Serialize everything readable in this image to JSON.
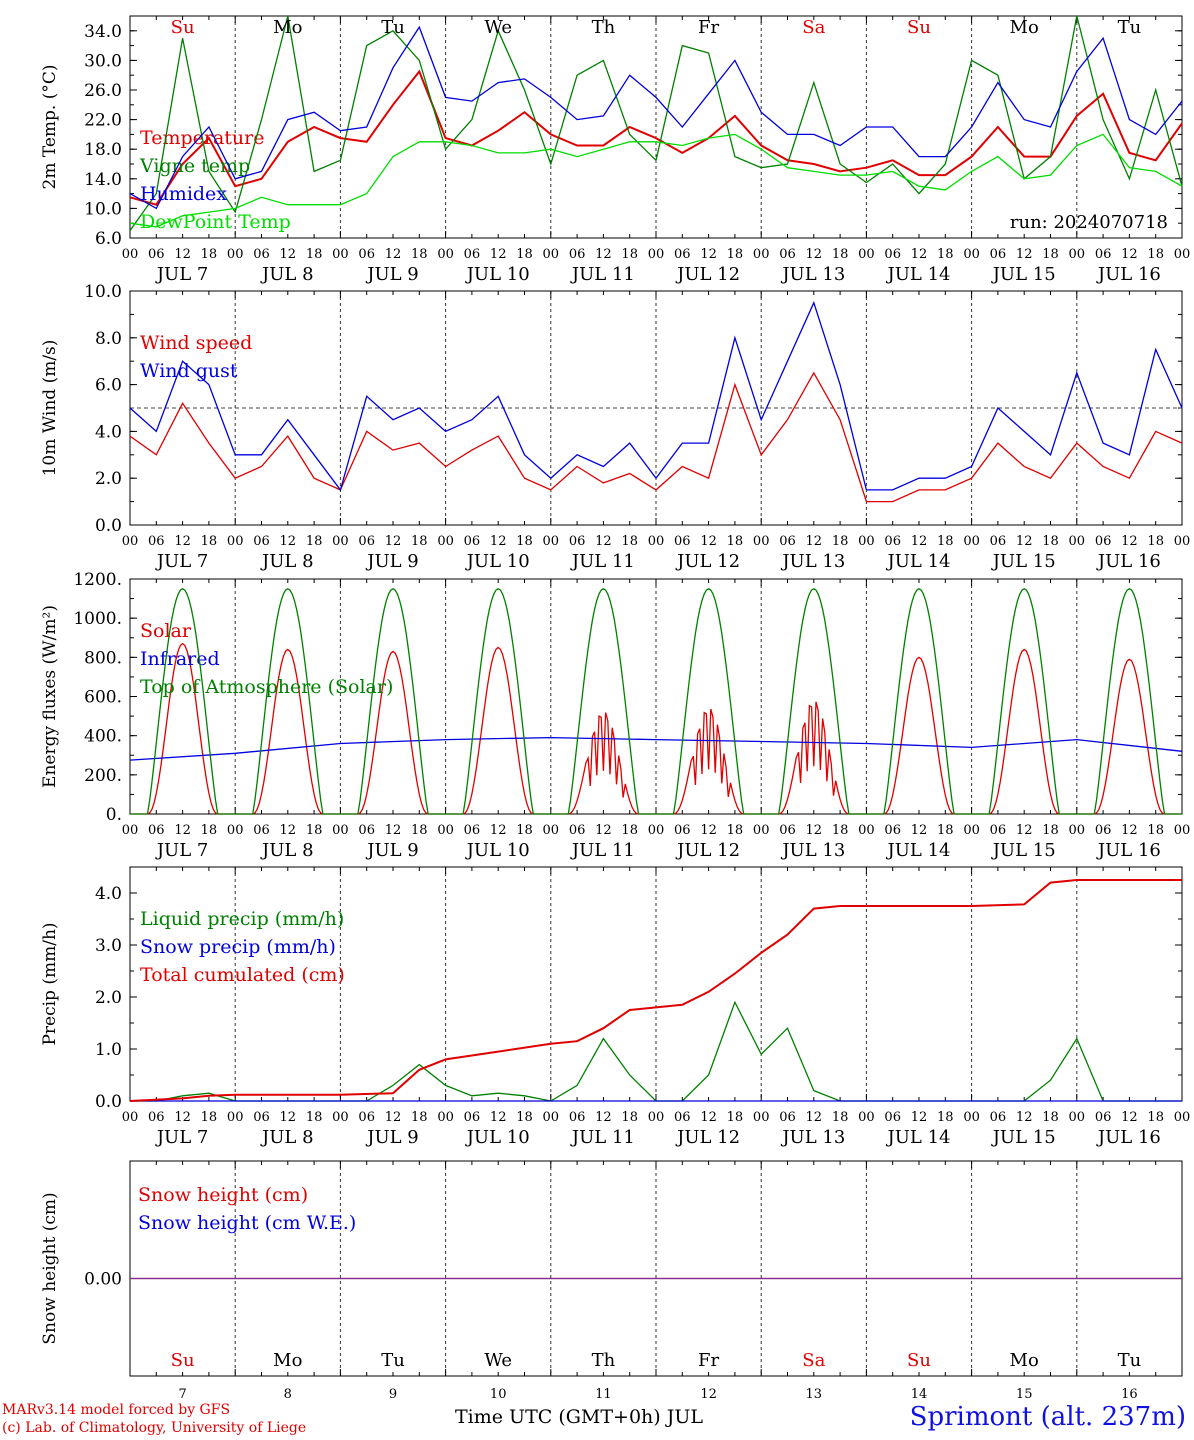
{
  "chart_data": [
    {
      "type": "line",
      "ylabel": "2m Temp. (°C)",
      "ylim": [
        6,
        36
      ],
      "yticks": [
        "6.0",
        "10.0",
        "14.0",
        "18.0",
        "22.0",
        "26.0",
        "30.0",
        "34.0"
      ],
      "ytick_values": [
        6,
        10,
        14,
        18,
        22,
        26,
        30,
        34
      ],
      "day_names": [
        "Su",
        "Mo",
        "Tu",
        "We",
        "Th",
        "Fr",
        "Sa",
        "Su",
        "Mo",
        "Tu"
      ],
      "run_label": "run: 2024070718",
      "series": [
        {
          "name": "Temperature",
          "color": "#e00000",
          "x": [
            0,
            6,
            12,
            18,
            24,
            30,
            36,
            42,
            48,
            54,
            60,
            66,
            72,
            78,
            84,
            90,
            96,
            102,
            108,
            114,
            120,
            126,
            132,
            138,
            144,
            150,
            156,
            162,
            168,
            174,
            180,
            186,
            192,
            198,
            204,
            210,
            216,
            222,
            228,
            234,
            240
          ],
          "y": [
            11.5,
            10.5,
            16.0,
            19.5,
            13.0,
            14.0,
            19.0,
            21.0,
            19.5,
            19.0,
            24.0,
            28.5,
            19.5,
            18.5,
            20.5,
            23.0,
            20.0,
            18.5,
            18.5,
            21.0,
            19.5,
            17.5,
            19.5,
            22.5,
            18.5,
            16.5,
            16.0,
            15.0,
            15.5,
            16.5,
            14.5,
            14.5,
            17.0,
            21.0,
            17.0,
            17.0,
            22.5,
            25.5,
            17.5,
            16.5,
            21.5
          ]
        },
        {
          "name": "Vigne temp",
          "color": "#008000",
          "x": [
            0,
            6,
            12,
            18,
            24,
            30,
            36,
            42,
            48,
            54,
            60,
            66,
            72,
            78,
            84,
            90,
            96,
            102,
            108,
            114,
            120,
            126,
            132,
            138,
            144,
            150,
            156,
            162,
            168,
            174,
            180,
            186,
            192,
            198,
            204,
            210,
            216,
            222,
            228,
            234,
            240
          ],
          "y": [
            7.0,
            12.0,
            33.0,
            15.0,
            9.5,
            22.0,
            36.0,
            15.0,
            16.5,
            32.0,
            34.0,
            30.0,
            18.0,
            22.0,
            34.0,
            26.0,
            16.0,
            28.0,
            30.0,
            20.0,
            16.5,
            32.0,
            31.0,
            17.0,
            15.5,
            16.0,
            27.0,
            16.0,
            13.5,
            16.0,
            12.0,
            16.0,
            30.0,
            28.0,
            14.0,
            17.0,
            36.0,
            22.0,
            14.0,
            26.0,
            13.0
          ]
        },
        {
          "name": "Humidex",
          "color": "#0000e0",
          "x": [
            0,
            6,
            12,
            18,
            24,
            30,
            36,
            42,
            48,
            54,
            60,
            66,
            72,
            78,
            84,
            90,
            96,
            102,
            108,
            114,
            120,
            126,
            132,
            138,
            144,
            150,
            156,
            162,
            168,
            174,
            180,
            186,
            192,
            198,
            204,
            210,
            216,
            222,
            228,
            234,
            240
          ],
          "y": [
            12.0,
            10.0,
            17.0,
            21.0,
            14.0,
            15.0,
            22.0,
            23.0,
            20.5,
            21.0,
            29.0,
            34.5,
            25.0,
            24.5,
            27.0,
            27.5,
            25.0,
            22.0,
            22.5,
            28.0,
            25.0,
            21.0,
            25.5,
            30.0,
            23.0,
            20.0,
            20.0,
            18.5,
            21.0,
            21.0,
            17.0,
            17.0,
            21.0,
            27.0,
            22.0,
            21.0,
            28.5,
            33.0,
            22.0,
            20.0,
            24.5
          ]
        },
        {
          "name": "DewPoint Temp",
          "color": "#00dd00",
          "x": [
            0,
            6,
            12,
            18,
            24,
            30,
            36,
            42,
            48,
            54,
            60,
            66,
            72,
            78,
            84,
            90,
            96,
            102,
            108,
            114,
            120,
            126,
            132,
            138,
            144,
            150,
            156,
            162,
            168,
            174,
            180,
            186,
            192,
            198,
            204,
            210,
            216,
            222,
            228,
            234,
            240
          ],
          "y": [
            8.0,
            7.5,
            9.0,
            9.5,
            10.0,
            11.5,
            10.5,
            10.5,
            10.5,
            12.0,
            17.0,
            19.0,
            19.0,
            18.5,
            17.5,
            17.5,
            18.0,
            17.0,
            18.0,
            19.0,
            19.0,
            18.5,
            19.5,
            20.0,
            18.0,
            15.5,
            15.0,
            14.5,
            14.5,
            15.0,
            13.0,
            12.5,
            15.0,
            17.0,
            14.0,
            14.5,
            18.5,
            20.0,
            15.5,
            15.0,
            13.0
          ]
        }
      ]
    },
    {
      "type": "line",
      "ylabel": "10m Wind (m/s)",
      "ylim": [
        0,
        10
      ],
      "yticks": [
        "0.0",
        "2.0",
        "4.0",
        "6.0",
        "8.0",
        "10.0"
      ],
      "ytick_values": [
        0,
        2,
        4,
        6,
        8,
        10
      ],
      "reference_line": 5,
      "series": [
        {
          "name": "Wind speed",
          "color": "#e00000",
          "x": [
            0,
            6,
            12,
            18,
            24,
            30,
            36,
            42,
            48,
            54,
            60,
            66,
            72,
            78,
            84,
            90,
            96,
            102,
            108,
            114,
            120,
            126,
            132,
            138,
            144,
            150,
            156,
            162,
            168,
            174,
            180,
            186,
            192,
            198,
            204,
            210,
            216,
            222,
            228,
            234,
            240
          ],
          "y": [
            3.8,
            3.0,
            5.2,
            3.5,
            2.0,
            2.5,
            3.8,
            2.0,
            1.5,
            4.0,
            3.2,
            3.5,
            2.5,
            3.2,
            3.8,
            2.0,
            1.5,
            2.5,
            1.8,
            2.2,
            1.5,
            2.5,
            2.0,
            6.0,
            3.0,
            4.5,
            6.5,
            4.5,
            1.0,
            1.0,
            1.5,
            1.5,
            2.0,
            3.5,
            2.5,
            2.0,
            3.5,
            2.5,
            2.0,
            4.0,
            3.5
          ]
        },
        {
          "name": "Wind gust",
          "color": "#0000e0",
          "x": [
            0,
            6,
            12,
            18,
            24,
            30,
            36,
            42,
            48,
            54,
            60,
            66,
            72,
            78,
            84,
            90,
            96,
            102,
            108,
            114,
            120,
            126,
            132,
            138,
            144,
            150,
            156,
            162,
            168,
            174,
            180,
            186,
            192,
            198,
            204,
            210,
            216,
            222,
            228,
            234,
            240
          ],
          "y": [
            5.0,
            4.0,
            7.0,
            6.0,
            3.0,
            3.0,
            4.5,
            3.0,
            1.5,
            5.5,
            4.5,
            5.0,
            4.0,
            4.5,
            5.5,
            3.0,
            2.0,
            3.0,
            2.5,
            3.5,
            2.0,
            3.5,
            3.5,
            8.0,
            4.5,
            7.0,
            9.5,
            6.0,
            1.5,
            1.5,
            2.0,
            2.0,
            2.5,
            5.0,
            4.0,
            3.0,
            6.5,
            3.5,
            3.0,
            7.5,
            5.0
          ]
        }
      ]
    },
    {
      "type": "line",
      "ylabel": "Energy fluxes (W/m²)",
      "ylim": [
        0,
        1200
      ],
      "yticks": [
        "0.",
        "200.",
        "400.",
        "600.",
        "800.",
        "1000.",
        "1200."
      ],
      "ytick_values": [
        0,
        200,
        400,
        600,
        800,
        1000,
        1200
      ],
      "series": [
        {
          "name": "Solar",
          "color": "#e00000",
          "peaks": [
            870,
            840,
            830,
            850,
            560,
            580,
            620,
            800,
            840,
            790
          ]
        },
        {
          "name": "Infrared",
          "color": "#0000e0",
          "x": [
            0,
            24,
            48,
            72,
            96,
            120,
            144,
            168,
            192,
            216,
            240
          ],
          "y": [
            275,
            310,
            360,
            380,
            390,
            380,
            370,
            360,
            340,
            380,
            320
          ]
        },
        {
          "name": "Top of Atmosphere (Solar)",
          "color": "#008000",
          "peaks": [
            1150,
            1150,
            1150,
            1150,
            1150,
            1150,
            1150,
            1150,
            1150,
            1150
          ]
        }
      ]
    },
    {
      "type": "line",
      "ylabel": "Precip (mm/h)",
      "ylim": [
        0,
        4.5
      ],
      "yticks": [
        "0.0",
        "1.0",
        "2.0",
        "3.0",
        "4.0"
      ],
      "ytick_values": [
        0,
        1,
        2,
        3,
        4
      ],
      "series": [
        {
          "name": "Liquid precip (mm/h)",
          "color": "#008000",
          "x": [
            0,
            6,
            12,
            18,
            24,
            30,
            36,
            42,
            48,
            54,
            60,
            66,
            72,
            78,
            84,
            90,
            96,
            102,
            108,
            114,
            120,
            126,
            132,
            138,
            144,
            150,
            156,
            162,
            168,
            174,
            180,
            186,
            192,
            198,
            204,
            210,
            216,
            222,
            228,
            234,
            240
          ],
          "y": [
            0,
            0,
            0.1,
            0.15,
            0,
            0,
            0,
            0,
            0,
            0,
            0.3,
            0.7,
            0.3,
            0.1,
            0.15,
            0.1,
            0,
            0.3,
            1.2,
            0.5,
            0,
            0,
            0.5,
            1.9,
            0.9,
            1.4,
            0.2,
            0,
            0,
            0,
            0,
            0,
            0,
            0,
            0,
            0.4,
            1.2,
            0,
            0,
            0,
            0
          ]
        },
        {
          "name": "Snow precip (mm/h)",
          "color": "#0000e0",
          "x": [
            0,
            240
          ],
          "y": [
            0,
            0
          ]
        },
        {
          "name": "Total cumulated (cm)",
          "color": "#e00000",
          "x": [
            0,
            12,
            18,
            24,
            48,
            60,
            66,
            72,
            84,
            96,
            102,
            108,
            114,
            120,
            126,
            132,
            138,
            144,
            150,
            156,
            162,
            168,
            192,
            204,
            210,
            216,
            240
          ],
          "y": [
            0,
            0.05,
            0.1,
            0.12,
            0.12,
            0.15,
            0.6,
            0.8,
            0.95,
            1.1,
            1.15,
            1.4,
            1.75,
            1.8,
            1.85,
            2.1,
            2.45,
            2.85,
            3.2,
            3.7,
            3.75,
            3.75,
            3.75,
            3.78,
            4.2,
            4.25,
            4.25
          ]
        }
      ]
    },
    {
      "type": "line",
      "ylabel": "Snow height (cm)",
      "yticks": [
        "0.00"
      ],
      "ytick_values": [
        0
      ],
      "series": [
        {
          "name": "Snow height (cm)",
          "color": "#e00000",
          "x": [
            0,
            240
          ],
          "y": [
            0,
            0
          ]
        },
        {
          "name": "Snow height (cm W.E.)",
          "color": "#0000e0",
          "x": [
            0,
            240
          ],
          "y": [
            0,
            0
          ]
        }
      ],
      "day_names": [
        "Su",
        "Mo",
        "Tu",
        "We",
        "Th",
        "Fr",
        "Sa",
        "Su",
        "Mo",
        "Tu"
      ],
      "day_numbers": [
        "7",
        "8",
        "9",
        "10",
        "11",
        "12",
        "13",
        "14",
        "15",
        "16"
      ]
    }
  ],
  "axis": {
    "hour_ticks": [
      "00",
      "06",
      "12",
      "18"
    ],
    "final_tick": "00",
    "date_labels": [
      "JUL  7",
      "JUL  8",
      "JUL  9",
      "JUL 10",
      "JUL 11",
      "JUL 12",
      "JUL 13",
      "JUL 14",
      "JUL 15",
      "JUL 16"
    ],
    "weekend_color": "#e00000"
  },
  "footer": {
    "model_line": "MARv3.14 model forced by GFS",
    "credit_line": "(c) Lab. of Climatology, University of Liege",
    "xlabel": "Time UTC (GMT+0h) JUL",
    "station": "Sprimont (alt. 237m)"
  }
}
